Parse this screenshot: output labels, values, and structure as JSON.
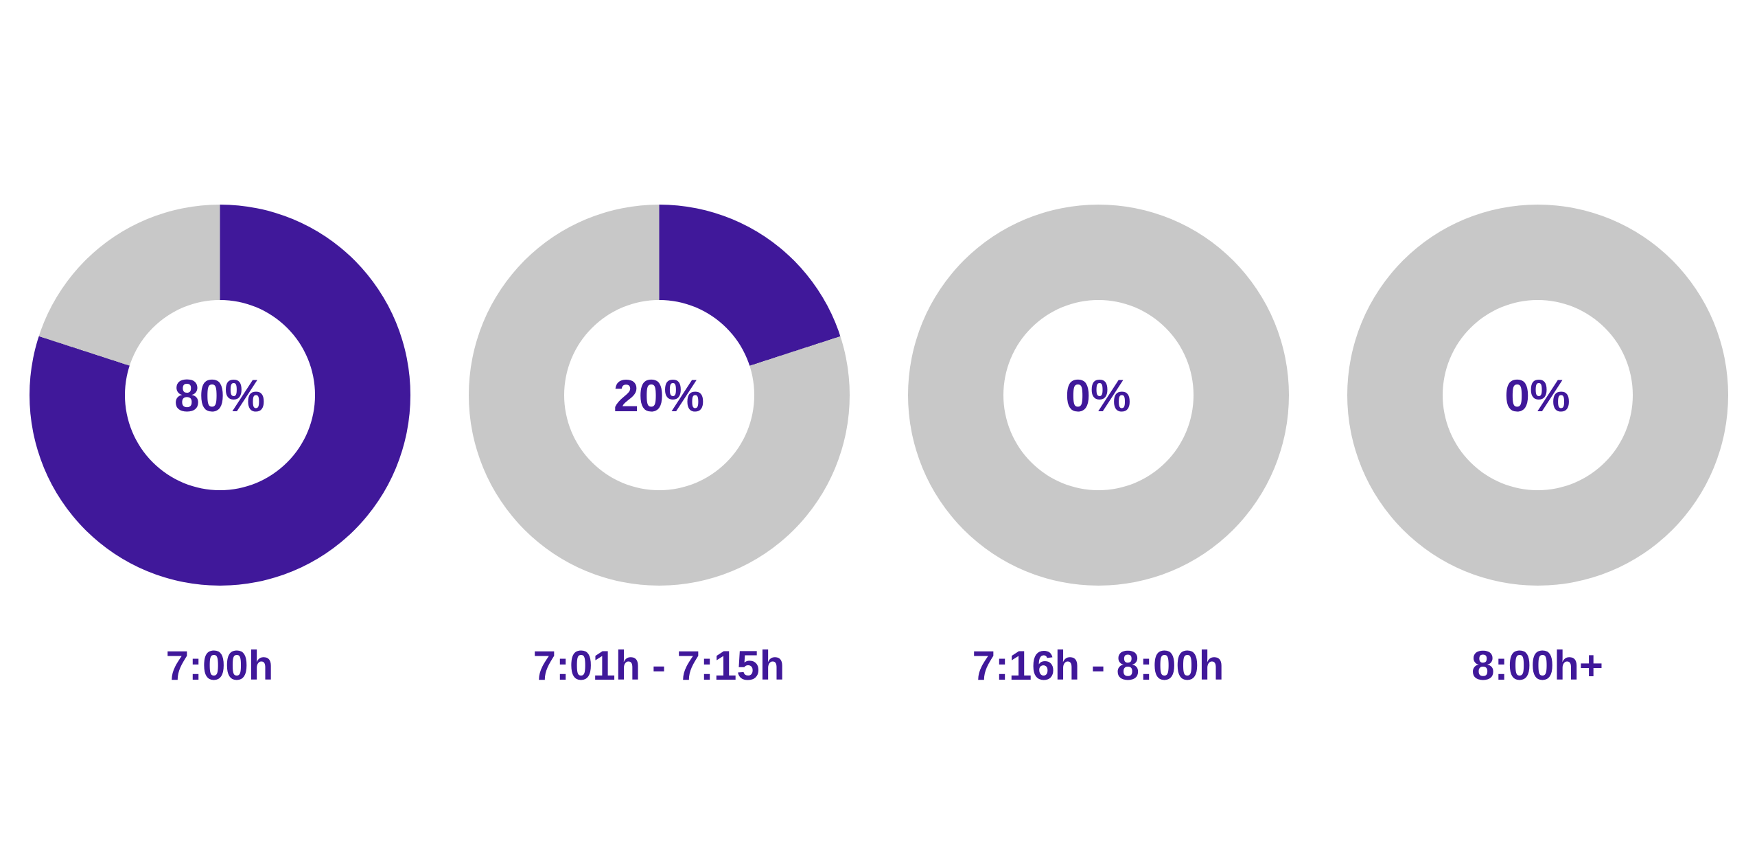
{
  "page": {
    "background_color": "#FFFFFF"
  },
  "chart_data": {
    "type": "pie",
    "variant": "donut",
    "layout": "4 donut gauges in one horizontal row, category label under each donut, percent value centered in each hole",
    "unit": "%",
    "legend": false,
    "start_angle_deg": 0,
    "direction": "clockwise",
    "inner_radius_ratio": 0.5,
    "colors": {
      "value": "#40189A",
      "remainder": "#C8C8C8",
      "text": "#40189A",
      "background": "#FFFFFF"
    },
    "categories": [
      "7:00h",
      "7:01h - 7:15h",
      "7:16h - 8:00h",
      "8:00h+"
    ],
    "values": [
      80,
      20,
      0,
      0
    ],
    "charts": [
      {
        "label": "7:00h",
        "value": 80,
        "display": "80%",
        "segments": [
          {
            "name": "value",
            "pct": 80
          },
          {
            "name": "remainder",
            "pct": 20
          }
        ]
      },
      {
        "label": "7:01h - 7:15h",
        "value": 20,
        "display": "20%",
        "segments": [
          {
            "name": "value",
            "pct": 20
          },
          {
            "name": "remainder",
            "pct": 80
          }
        ]
      },
      {
        "label": "7:16h - 8:00h",
        "value": 0,
        "display": "0%",
        "segments": [
          {
            "name": "value",
            "pct": 0
          },
          {
            "name": "remainder",
            "pct": 100
          }
        ]
      },
      {
        "label": "8:00h+",
        "value": 0,
        "display": "0%",
        "segments": [
          {
            "name": "value",
            "pct": 0
          },
          {
            "name": "remainder",
            "pct": 100
          }
        ]
      }
    ]
  }
}
